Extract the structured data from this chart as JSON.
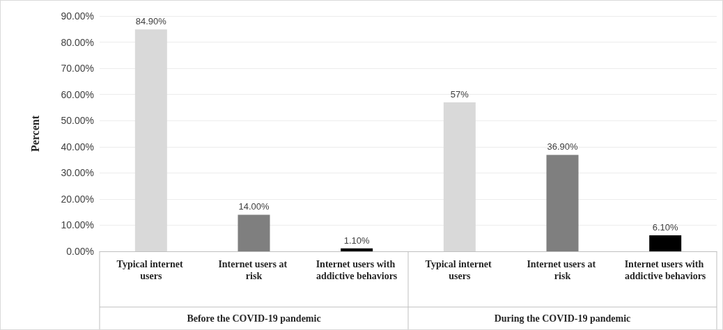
{
  "chart_data": {
    "type": "bar",
    "ylabel": "Percent",
    "categories": [
      "Typical internet users",
      "Internet users at risk",
      "Internet users with addictive behaviors",
      "Typical internet users",
      "Internet users at risk",
      "Internet users with addictive behaviors"
    ],
    "values": [
      84.9,
      14.0,
      1.1,
      57,
      36.9,
      6.1
    ],
    "colors": [
      "#d9d9d9",
      "#7f7f7f",
      "#000000",
      "#d9d9d9",
      "#7f7f7f",
      "#000000"
    ],
    "value_labels": [
      "84.90%",
      "14.00%",
      "1.10%",
      "57%",
      "36.90%",
      "6.10%"
    ],
    "ylim": [
      0,
      90
    ],
    "yticks": [
      {
        "value": 0,
        "label": "0.00%"
      },
      {
        "value": 10,
        "label": "10.00%"
      },
      {
        "value": 20,
        "label": "20.00%"
      },
      {
        "value": 30,
        "label": "30.00%"
      },
      {
        "value": 40,
        "label": "40.00%"
      },
      {
        "value": 50,
        "label": "50.00%"
      },
      {
        "value": 60,
        "label": "60.00%"
      },
      {
        "value": 70,
        "label": "70.00%"
      },
      {
        "value": 80,
        "label": "80.00%"
      },
      {
        "value": 90,
        "label": "90.00%"
      }
    ],
    "grid": "y",
    "annotations": [
      "Before the COVID-19 pandemic",
      "During the COVID-19 pandemic"
    ]
  }
}
